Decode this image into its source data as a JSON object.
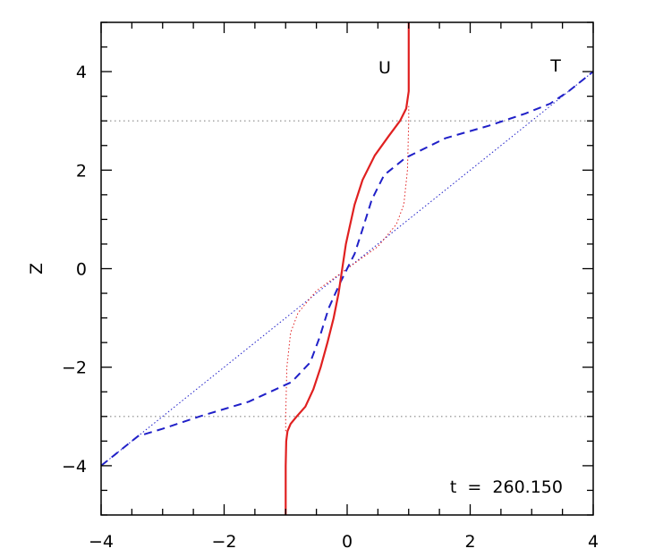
{
  "chart_data": {
    "type": "line",
    "title": "",
    "xlabel": "",
    "ylabel": "Z",
    "xlim": [
      -4,
      4
    ],
    "ylim": [
      -5,
      5
    ],
    "x_ticks": [
      -4,
      -2,
      0,
      2,
      4
    ],
    "x_tick_labels": [
      "−4",
      "−2",
      "0",
      "2",
      "4"
    ],
    "y_ticks": [
      -4,
      -2,
      0,
      2,
      4
    ],
    "y_tick_labels": [
      "−4",
      "−2",
      "0",
      "2",
      "4"
    ],
    "annotations": {
      "time": "t  =  260.150",
      "u_label": "U",
      "t_label": "T"
    },
    "reference_lines_z": [
      -3,
      3
    ],
    "series": [
      {
        "color": "#e02020",
        "style": "solid",
        "points": [
          [
            -1.0,
            -5.0
          ],
          [
            -1.0,
            -4.0
          ],
          [
            -0.99,
            -3.5
          ],
          [
            -0.97,
            -3.3
          ],
          [
            -0.92,
            -3.15
          ],
          [
            -0.82,
            -3.0
          ],
          [
            -0.68,
            -2.8
          ],
          [
            -0.55,
            -2.45
          ],
          [
            -0.43,
            -2.0
          ],
          [
            -0.32,
            -1.5
          ],
          [
            -0.22,
            -1.0
          ],
          [
            -0.14,
            -0.5
          ],
          [
            -0.08,
            0.0
          ],
          [
            -0.02,
            0.5
          ],
          [
            0.04,
            0.85
          ],
          [
            0.12,
            1.3
          ],
          [
            0.25,
            1.8
          ],
          [
            0.45,
            2.3
          ],
          [
            0.68,
            2.7
          ],
          [
            0.86,
            3.0
          ],
          [
            0.96,
            3.25
          ],
          [
            1.0,
            3.6
          ],
          [
            1.0,
            4.2
          ],
          [
            1.0,
            5.0
          ]
        ]
      },
      {
        "color": "#2020c8",
        "style": "dashed",
        "points": [
          [
            -4.0,
            -4.0
          ],
          [
            -3.7,
            -3.7
          ],
          [
            -3.4,
            -3.4
          ],
          [
            -3.0,
            -3.25
          ],
          [
            -2.4,
            -3.0
          ],
          [
            -1.6,
            -2.7
          ],
          [
            -0.9,
            -2.3
          ],
          [
            -0.6,
            -1.9
          ],
          [
            -0.45,
            -1.4
          ],
          [
            -0.3,
            -0.8
          ],
          [
            -0.12,
            -0.3
          ],
          [
            0.0,
            0.0
          ],
          [
            0.12,
            0.3
          ],
          [
            0.25,
            0.8
          ],
          [
            0.4,
            1.4
          ],
          [
            0.6,
            1.9
          ],
          [
            0.95,
            2.25
          ],
          [
            1.6,
            2.65
          ],
          [
            2.3,
            2.9
          ],
          [
            2.9,
            3.15
          ],
          [
            3.3,
            3.35
          ],
          [
            3.6,
            3.6
          ],
          [
            4.0,
            4.0
          ]
        ]
      },
      {
        "color": "#e02020",
        "style": "dotted",
        "points": [
          [
            -1.0,
            -3.3
          ],
          [
            -1.0,
            -3.0
          ],
          [
            -0.98,
            -2.0
          ],
          [
            -0.92,
            -1.3
          ],
          [
            -0.8,
            -0.9
          ],
          [
            -0.5,
            -0.45
          ],
          [
            0.0,
            0.0
          ],
          [
            0.5,
            0.45
          ],
          [
            0.8,
            0.9
          ],
          [
            0.92,
            1.3
          ],
          [
            0.98,
            2.0
          ],
          [
            1.0,
            3.0
          ],
          [
            1.0,
            3.3
          ]
        ]
      },
      {
        "color": "#2020c8",
        "style": "dotted",
        "points": [
          [
            -4.0,
            -4.0
          ],
          [
            4.0,
            4.0
          ]
        ]
      }
    ]
  }
}
